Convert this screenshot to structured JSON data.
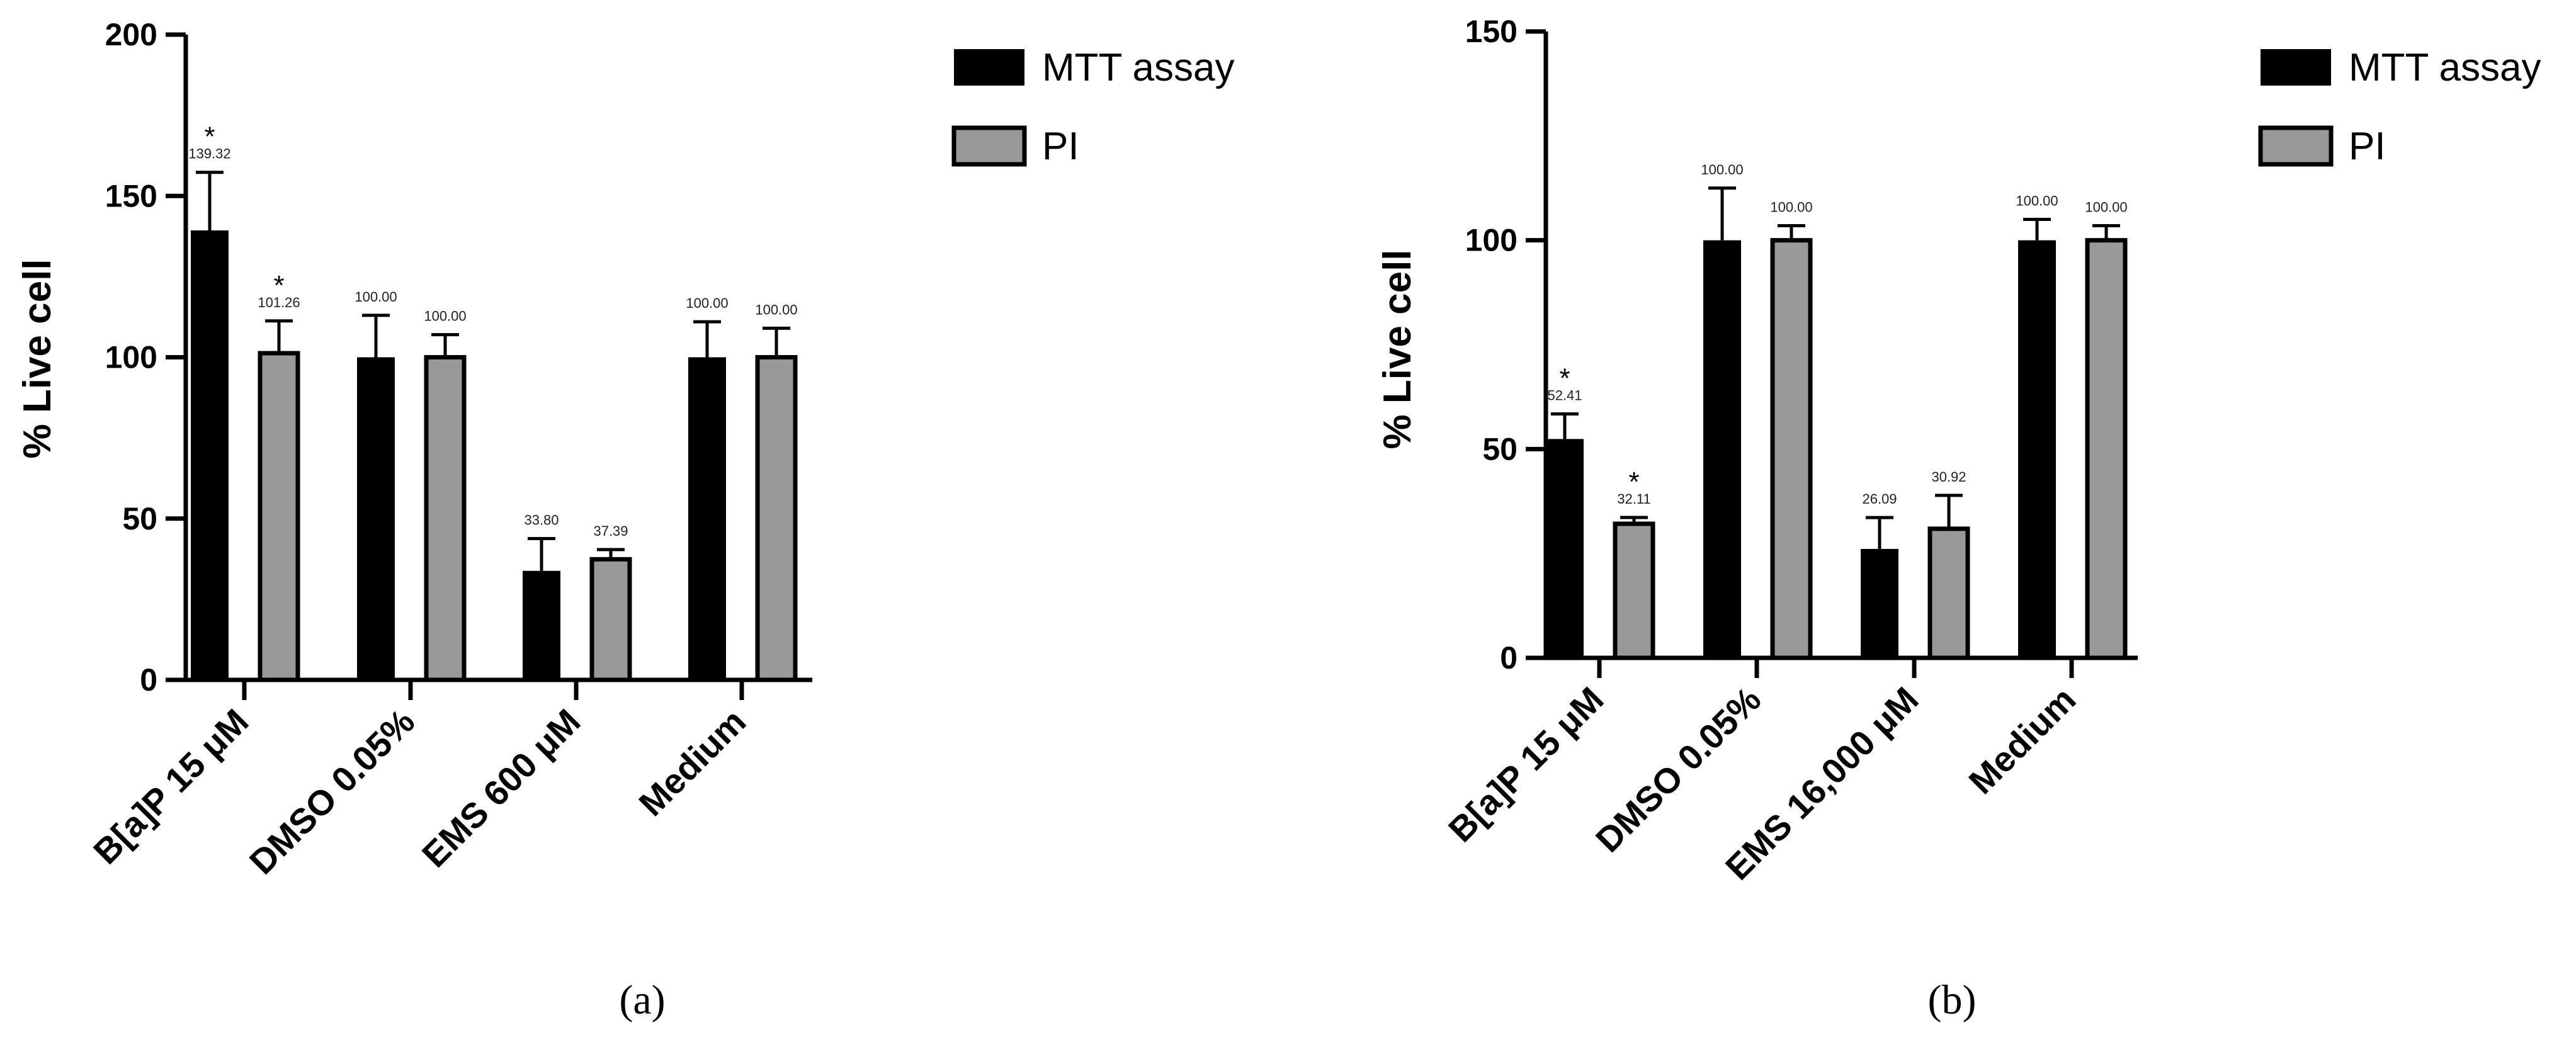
{
  "chart_data": [
    {
      "type": "bar",
      "panel_label": "(a)",
      "ylabel": "% Live cell",
      "ylim": [
        0,
        200
      ],
      "yticks": [
        "0",
        "50",
        "100",
        "150",
        "200"
      ],
      "categories": [
        "B[a]P 15 μM",
        "DMSO 0.05%",
        "EMS 600 μM",
        "Medium"
      ],
      "series": [
        {
          "name": "MTT assay",
          "color": "#000000",
          "values": [
            139.32,
            100.0,
            33.8,
            100.0
          ],
          "errors": [
            18,
            13,
            10,
            11
          ],
          "labels": [
            "139.32",
            "100.00",
            "33.80",
            "100.00"
          ],
          "sig": [
            "*",
            "",
            "",
            ""
          ]
        },
        {
          "name": "PI",
          "color": "#999999",
          "values": [
            101.26,
            100.0,
            37.39,
            100.0
          ],
          "errors": [
            10,
            7,
            3,
            9
          ],
          "labels": [
            "101.26",
            "100.00",
            "37.39",
            "100.00"
          ],
          "sig": [
            "*",
            "",
            "",
            ""
          ]
        }
      ],
      "legend": "top-right",
      "grid": false
    },
    {
      "type": "bar",
      "panel_label": "(b)",
      "ylabel": "% Live cell",
      "ylim": [
        0,
        150
      ],
      "yticks": [
        "0",
        "50",
        "100",
        "150"
      ],
      "categories": [
        "B[a]P 15 μM",
        "DMSO 0.05%",
        "EMS 16,000 μM",
        "Medium"
      ],
      "series": [
        {
          "name": "MTT assay",
          "color": "#000000",
          "values": [
            52.41,
            100.0,
            26.09,
            100.0
          ],
          "errors": [
            6,
            12.5,
            7.5,
            5
          ],
          "labels": [
            "52.41",
            "100.00",
            "26.09",
            "100.00"
          ],
          "sig": [
            "*",
            "",
            "",
            ""
          ]
        },
        {
          "name": "PI",
          "color": "#999999",
          "values": [
            32.11,
            100.0,
            30.92,
            100.0
          ],
          "errors": [
            1.5,
            3.5,
            8,
            3.5
          ],
          "labels": [
            "32.11",
            "100.00",
            "30.92",
            "100.00"
          ],
          "sig": [
            "*",
            "",
            "",
            ""
          ]
        }
      ],
      "legend": "top-right",
      "grid": false
    }
  ]
}
